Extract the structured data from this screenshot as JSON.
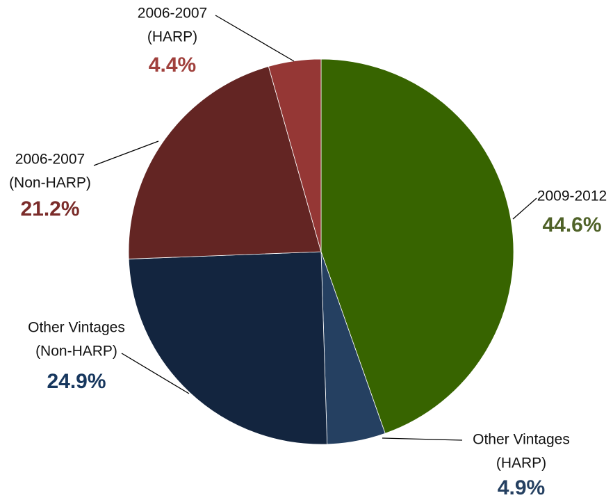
{
  "chart_data": {
    "type": "pie",
    "categories": [
      [
        "2009-2012"
      ],
      [
        "Other Vintages",
        "(HARP)"
      ],
      [
        "Other Vintages",
        "(Non-HARP)"
      ],
      [
        "2006-2007",
        "(Non-HARP)"
      ],
      [
        "2006-2007",
        "(HARP)"
      ]
    ],
    "values": [
      44.6,
      4.9,
      24.9,
      21.2,
      4.4
    ],
    "value_labels": [
      "44.6%",
      "4.9%",
      "24.9%",
      "21.2%",
      "4.4%"
    ],
    "colors": [
      "#376400",
      "#254061",
      "#13253f",
      "#632523",
      "#953735"
    ],
    "label_colors": [
      "#4f6228",
      "#254061",
      "#17375e",
      "#7b2c2a",
      "#a0403c"
    ]
  }
}
